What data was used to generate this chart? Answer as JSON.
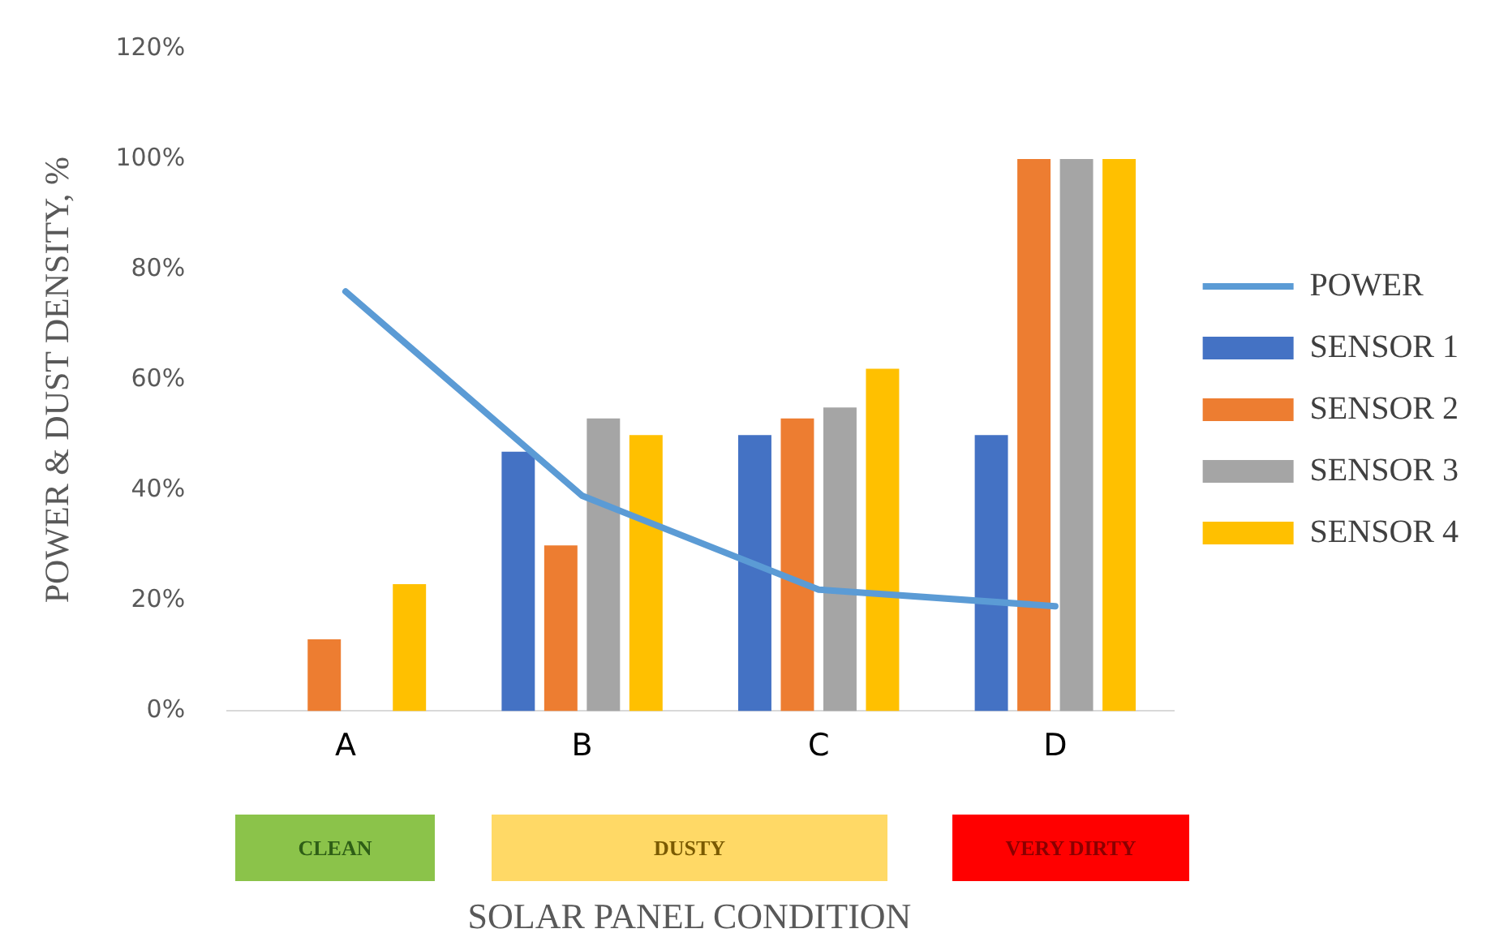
{
  "chart_data": {
    "type": "bar",
    "categories": [
      "A",
      "B",
      "C",
      "D"
    ],
    "xlabel": "SOLAR PANEL CONDITION",
    "ylabel": "POWER & DUST DENSITY, %",
    "series": [
      {
        "name": "SENSOR 1",
        "color": "#4472c4",
        "values": [
          null,
          47,
          50,
          50
        ]
      },
      {
        "name": "SENSOR 2",
        "color": "#ed7d31",
        "values": [
          13,
          30,
          53,
          100
        ]
      },
      {
        "name": "SENSOR 3",
        "color": "#a5a5a5",
        "values": [
          null,
          53,
          55,
          100
        ]
      },
      {
        "name": "SENSOR 4",
        "color": "#ffc000",
        "values": [
          23,
          50,
          62,
          100
        ]
      },
      {
        "name": "POWER",
        "type": "line",
        "color": "#5b9bd5",
        "values": [
          76,
          39,
          22,
          19
        ],
        "marker": "none"
      }
    ],
    "ylim": [
      0,
      120
    ],
    "yticks": [
      {
        "value": 0,
        "label": "0%"
      },
      {
        "value": 20,
        "label": "20%"
      },
      {
        "value": 40,
        "label": "40%"
      },
      {
        "value": 60,
        "label": "60%"
      },
      {
        "value": 80,
        "label": "80%"
      },
      {
        "value": 100,
        "label": "100%"
      },
      {
        "value": 120,
        "label": "120%"
      }
    ],
    "grid": false,
    "legend": "right",
    "annotations": [
      "CLEAN",
      "DUSTY",
      "VERY DIRTY"
    ]
  }
}
